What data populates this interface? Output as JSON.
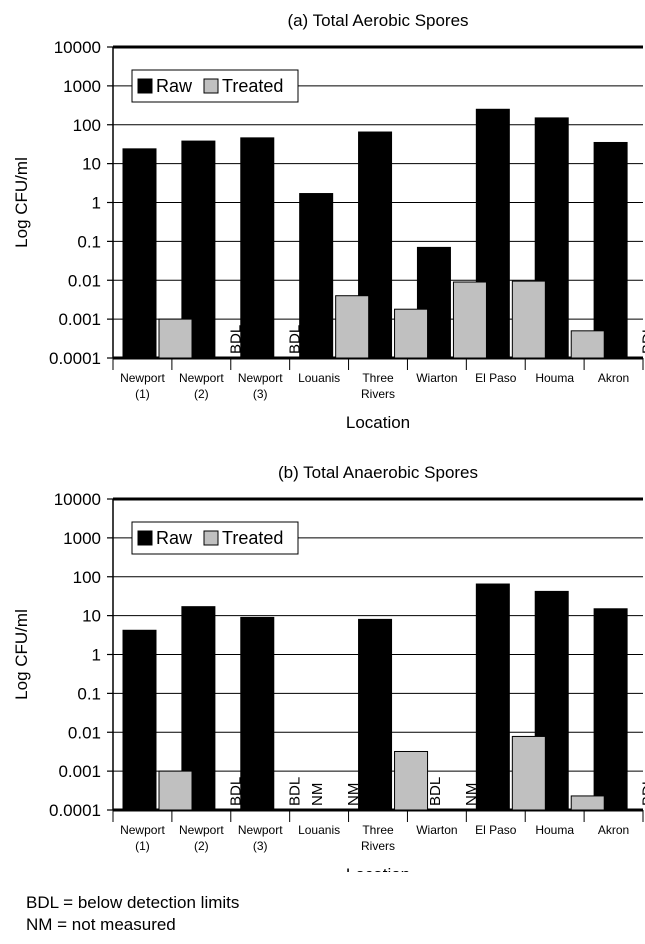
{
  "chart_data": [
    {
      "type": "bar",
      "title": "(a) Total Aerobic Spores",
      "xlabel": "Location",
      "ylabel": "Log CFU/ml",
      "yscale": "log",
      "ylim": [
        0.0001,
        10000
      ],
      "yticks": [
        "0.0001",
        "0.001",
        "0.01",
        "0.1",
        "1",
        "10",
        "100",
        "1000",
        "10000"
      ],
      "categories": [
        "Newport\n(1)",
        "Newport\n(2)",
        "Newport\n(3)",
        "Louanis",
        "Three\nRivers",
        "Wiarton",
        "El Paso",
        "Houma",
        "Akron"
      ],
      "legend": "top-left",
      "grid": true,
      "series": [
        {
          "name": "Raw",
          "color": "#000000",
          "values": [
            24,
            38,
            46,
            1.7,
            65,
            0.07,
            250,
            150,
            35
          ]
        },
        {
          "name": "Treated",
          "color": "#c0c0c0",
          "values": [
            0.001,
            null,
            null,
            0.004,
            0.0018,
            0.009,
            0.0095,
            0.0005,
            null
          ]
        }
      ],
      "annotations": [
        {
          "category": 1,
          "series": 1,
          "text": "BDL"
        },
        {
          "category": 2,
          "series": 1,
          "text": "BDL"
        },
        {
          "category": 8,
          "series": 1,
          "text": "BDL"
        }
      ]
    },
    {
      "type": "bar",
      "title": "(b) Total Anaerobic Spores",
      "xlabel": "Location",
      "ylabel": "Log CFU/ml",
      "yscale": "log",
      "ylim": [
        0.0001,
        10000
      ],
      "yticks": [
        "0.0001",
        "0.001",
        "0.01",
        "0.1",
        "1",
        "10",
        "100",
        "1000",
        "10000"
      ],
      "categories": [
        "Newport\n(1)",
        "Newport\n(2)",
        "Newport\n(3)",
        "Louanis",
        "Three\nRivers",
        "Wiarton",
        "El Paso",
        "Houma",
        "Akron"
      ],
      "legend": "top-left",
      "grid": true,
      "series": [
        {
          "name": "Raw",
          "color": "#000000",
          "values": [
            4.2,
            17,
            9,
            null,
            8,
            null,
            65,
            42,
            15
          ]
        },
        {
          "name": "Treated",
          "color": "#c0c0c0",
          "values": [
            0.001,
            null,
            null,
            null,
            0.0032,
            null,
            0.0078,
            0.00023,
            null
          ]
        }
      ],
      "annotations": [
        {
          "category": 1,
          "series": 1,
          "text": "BDL"
        },
        {
          "category": 2,
          "series": 1,
          "text": "BDL"
        },
        {
          "category": 3,
          "series": 0,
          "text": "NM"
        },
        {
          "category": 3,
          "series": 1,
          "text": "NM"
        },
        {
          "category": 5,
          "series": 0,
          "text": "BDL"
        },
        {
          "category": 5,
          "series": 1,
          "text": "NM"
        },
        {
          "category": 8,
          "series": 1,
          "text": "BDL"
        }
      ]
    }
  ],
  "footnotes": {
    "bdl": "BDL = below detection limits",
    "nm": "NM  = not measured"
  }
}
